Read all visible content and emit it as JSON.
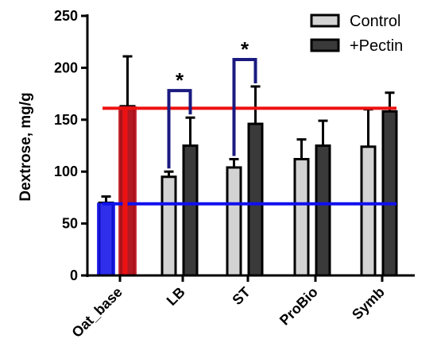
{
  "chart_data": {
    "type": "bar",
    "title": "",
    "xlabel": "",
    "ylabel": "Dextrose, mg/g",
    "ylim": [
      0,
      250
    ],
    "yticks": [
      0,
      50,
      100,
      150,
      200,
      250
    ],
    "categories": [
      "Oat_base",
      "LB",
      "ST",
      "ProBio",
      "Symb"
    ],
    "series": [
      {
        "name": "Control",
        "color": "#d3d3d3",
        "values": [
          70,
          95,
          104,
          112,
          124
        ],
        "errors": [
          6,
          5,
          8,
          19,
          36
        ]
      },
      {
        "name": "+Pectin",
        "color": "#3a3a3a",
        "values": [
          163,
          125,
          146,
          125,
          158
        ],
        "errors": [
          48,
          27,
          36,
          24,
          18
        ]
      }
    ],
    "reference_lines": [
      {
        "value": 69,
        "color": "#1010ee",
        "from_category": "Oat_base",
        "to_category": "Symb"
      },
      {
        "value": 161,
        "color": "#ee1111",
        "from_category": "Oat_base",
        "to_category": "Symb"
      }
    ],
    "highlight_bars": [
      {
        "category": "Oat_base",
        "series": "Control",
        "color": "#1010ee"
      },
      {
        "category": "Oat_base",
        "series": "+Pectin",
        "color": "#c8141e"
      }
    ],
    "significance": [
      {
        "category": "LB",
        "label": "*",
        "bracket_color": "#1a1a80"
      },
      {
        "category": "ST",
        "label": "*",
        "bracket_color": "#1a1a80"
      }
    ],
    "legend": {
      "position": "top-right",
      "entries": [
        "Control",
        "+Pectin"
      ]
    },
    "grid": false
  }
}
